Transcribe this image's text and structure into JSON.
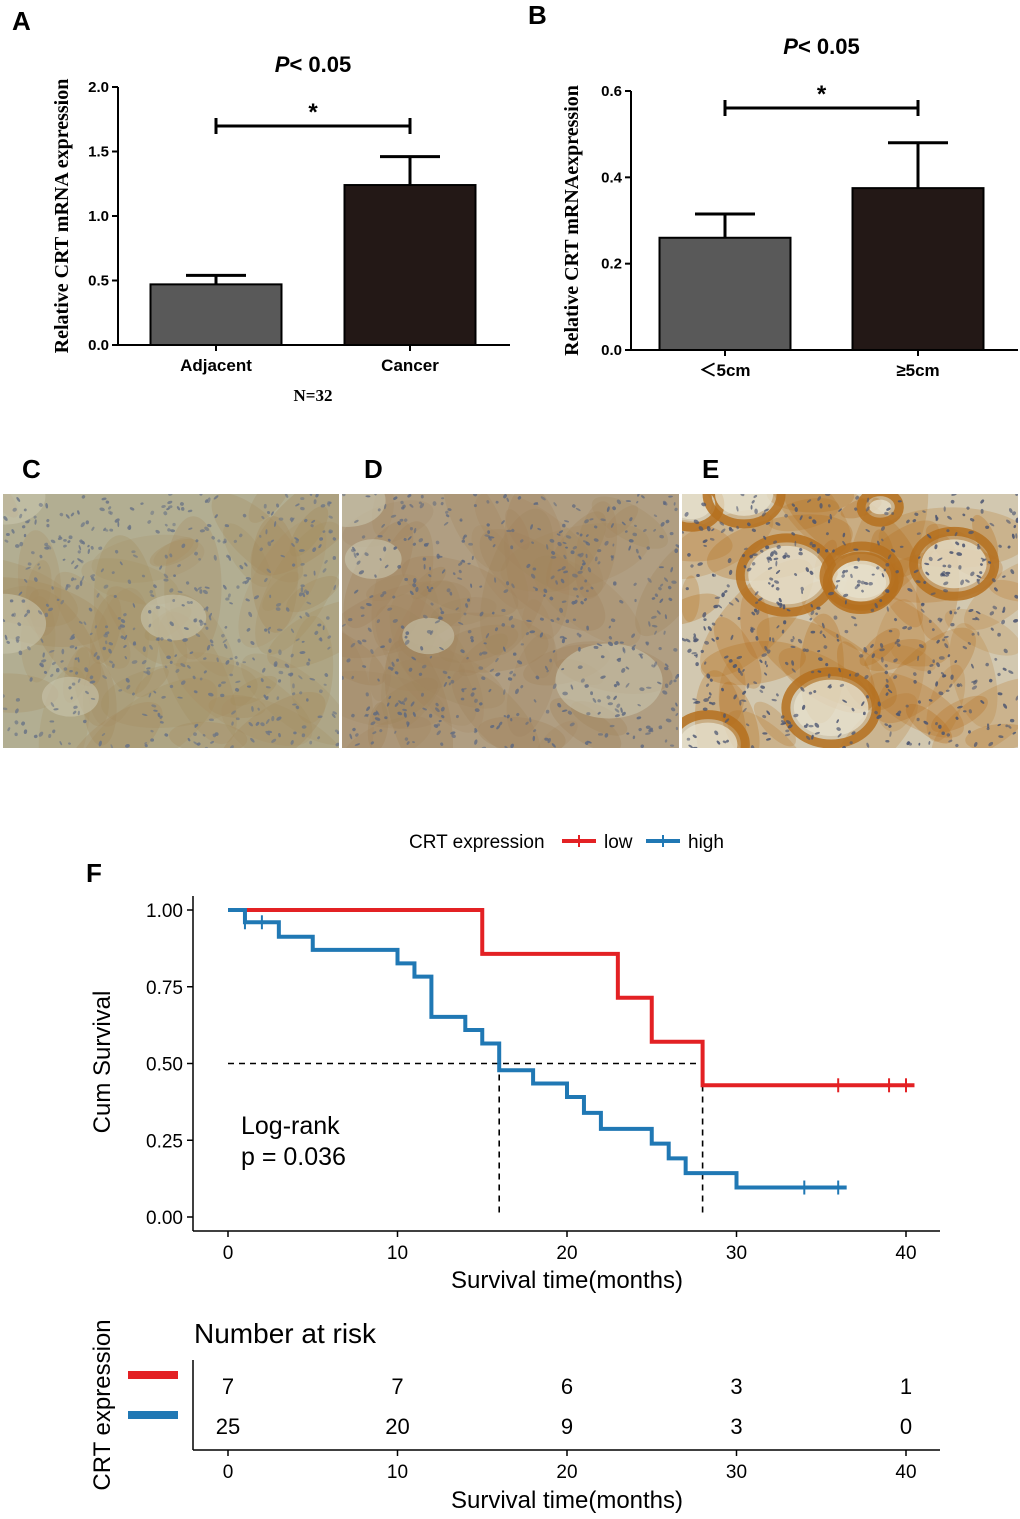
{
  "panels": {
    "a": "A",
    "b": "B",
    "c": "C",
    "d": "D",
    "e": "E",
    "f": "F"
  },
  "chart_data": [
    {
      "panel": "A",
      "type": "bar",
      "title": "P< 0.05",
      "ylabel": "Relative CRT mRNA expression",
      "categories": [
        "Adjacent",
        "Cancer"
      ],
      "values": [
        0.47,
        1.24
      ],
      "errors": [
        0.07,
        0.22
      ],
      "bar_colors": [
        "#595959",
        "#231816"
      ],
      "ylim": [
        0.0,
        2.0
      ],
      "yticks": [
        "0.0",
        "0.5",
        "1.0",
        "1.5",
        "2.0"
      ],
      "significance": "*",
      "note": "N=32",
      "grid": false
    },
    {
      "panel": "B",
      "type": "bar",
      "title": "P< 0.05",
      "ylabel": "Relative CRT mRNAexpression",
      "categories": [
        "＜5cm",
        "≥5cm"
      ],
      "values": [
        0.26,
        0.375
      ],
      "errors": [
        0.055,
        0.105
      ],
      "bar_colors": [
        "#595959",
        "#231816"
      ],
      "ylim": [
        0.0,
        0.6
      ],
      "yticks": [
        "0.0",
        "0.2",
        "0.4",
        "0.6"
      ],
      "significance": "*",
      "grid": false
    },
    {
      "panel": "F",
      "type": "line",
      "xlabel": "Survival time(months)",
      "ylabel": "Cum Survival",
      "xlim": [
        0,
        40
      ],
      "ylim": [
        0,
        1
      ],
      "xticks": [
        "0",
        "10",
        "20",
        "30",
        "40"
      ],
      "yticks": [
        "0.00",
        "0.25",
        "0.50",
        "0.75",
        "1.00"
      ],
      "legend": {
        "title": "CRT expression",
        "position": "top"
      },
      "annotation": [
        "Log-rank",
        "p = 0.036"
      ],
      "median_line": {
        "y": 0.5,
        "x": [
          16,
          28
        ]
      },
      "series": [
        {
          "name": "low",
          "color": "#e32124",
          "steps": [
            [
              0,
              1.0
            ],
            [
              15,
              0.857
            ],
            [
              23,
              0.714
            ],
            [
              25,
              0.571
            ],
            [
              28,
              0.429
            ],
            [
              40.5,
              0.429
            ]
          ],
          "censored": [
            [
              36,
              0.429
            ],
            [
              39,
              0.429
            ],
            [
              40,
              0.429
            ]
          ]
        },
        {
          "name": "high",
          "color": "#2078b4",
          "steps": [
            [
              0,
              1.0
            ],
            [
              1,
              0.96
            ],
            [
              3,
              0.913
            ],
            [
              5,
              0.87
            ],
            [
              10,
              0.826
            ],
            [
              11,
              0.783
            ],
            [
              12,
              0.652
            ],
            [
              14,
              0.609
            ],
            [
              15,
              0.565
            ],
            [
              16,
              0.478
            ],
            [
              18,
              0.435
            ],
            [
              20,
              0.391
            ],
            [
              21,
              0.339
            ],
            [
              22,
              0.287
            ],
            [
              25,
              0.239
            ],
            [
              26,
              0.191
            ],
            [
              27,
              0.143
            ],
            [
              30,
              0.096
            ],
            [
              36.5,
              0.096
            ]
          ],
          "censored": [
            [
              1,
              0.96
            ],
            [
              2,
              0.96
            ],
            [
              34,
              0.096
            ],
            [
              36,
              0.096
            ]
          ]
        }
      ]
    },
    {
      "panel": "F-risk",
      "type": "table",
      "title": "Number at risk",
      "ylabel": "CRT expression",
      "xlabel": "Survival time(months)",
      "xticks": [
        "0",
        "10",
        "20",
        "30",
        "40"
      ],
      "rows": [
        {
          "name": "low",
          "color": "#e32124",
          "values": [
            "7",
            "7",
            "6",
            "3",
            "1"
          ]
        },
        {
          "name": "high",
          "color": "#2078b4",
          "values": [
            "25",
            "20",
            "9",
            "3",
            "0"
          ]
        }
      ]
    }
  ],
  "micrographs": [
    {
      "panel": "C",
      "base": "#b2ae92",
      "stroma": "#6a7486",
      "stain": "#a48a5c"
    },
    {
      "panel": "D",
      "base": "#b09e82",
      "stroma": "#606a80",
      "stain": "#a0825a"
    },
    {
      "panel": "E",
      "base": "#d2c8b0",
      "stroma": "#4a5470",
      "stain": "#b5701f"
    }
  ]
}
